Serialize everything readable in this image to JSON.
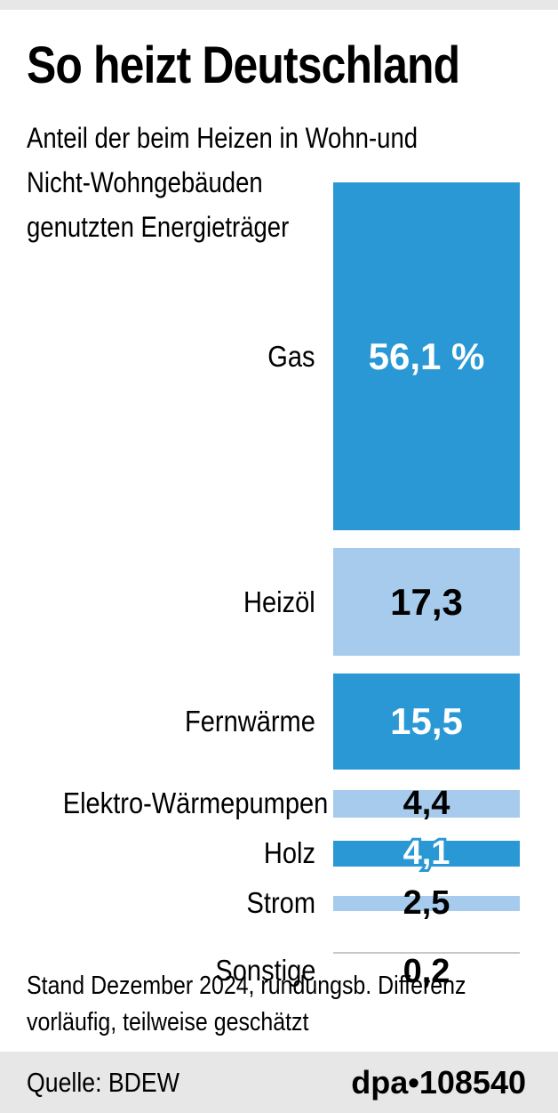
{
  "header": {
    "title": "So heizt Deutschland",
    "subtitle_lines": [
      "Anteil der beim Heizen in Wohn-und",
      "Nicht-Wohngebäuden",
      "genutzten Energieträger"
    ]
  },
  "chart_data": {
    "type": "bar",
    "title": "So heizt Deutschland",
    "subtitle": "Anteil der beim Heizen in Wohn-und Nicht-Wohngebäuden genutzten Energieträger",
    "unit": "%",
    "categories": [
      "Gas",
      "Heizöl",
      "Fernwärme",
      "Elektro-Wärmepumpen",
      "Holz",
      "Strom",
      "Sonstige"
    ],
    "values": [
      56.1,
      17.3,
      15.5,
      4.4,
      4.1,
      2.5,
      0.2
    ],
    "rows": [
      {
        "label": "Gas",
        "value": 56.1,
        "display": "56,1 %",
        "bar_color": "#2998d5",
        "text_color": "#ffffff"
      },
      {
        "label": "Heizöl",
        "value": 17.3,
        "display": "17,3",
        "bar_color": "#a6cbec",
        "text_color": "#000000"
      },
      {
        "label": "Fernwärme",
        "value": 15.5,
        "display": "15,5",
        "bar_color": "#2998d5",
        "text_color": "#ffffff"
      },
      {
        "label": "Elektro-Wärmepumpen",
        "value": 4.4,
        "display": "4,4",
        "bar_color": "#a6cbec",
        "text_color": "#000000"
      },
      {
        "label": "Holz",
        "value": 4.1,
        "display": "4,1",
        "bar_color": "#2998d5",
        "text_color": "#ffffff",
        "outlined": true
      },
      {
        "label": "Strom",
        "value": 2.5,
        "display": "2,5",
        "bar_color": "#a6cbec",
        "text_color": "#000000"
      },
      {
        "label": "Sonstige",
        "value": 0.2,
        "display": "0,2",
        "bar_color": "#c8c8c8",
        "text_color": "#000000",
        "value_below": true
      }
    ],
    "colors": {
      "dark_blue": "#2998d5",
      "light_blue": "#a6cbec",
      "sonstige_line": "#c8c8c8",
      "band_gray": "#e7e7e7"
    },
    "legend": "none",
    "grid": "off"
  },
  "footer": {
    "note_lines": [
      "Stand Dezember 2024, rundungsb. Differenz",
      "vorläufig, teilweise geschätzt"
    ],
    "source": "Quelle: BDEW",
    "credit": "dpa•108540"
  }
}
